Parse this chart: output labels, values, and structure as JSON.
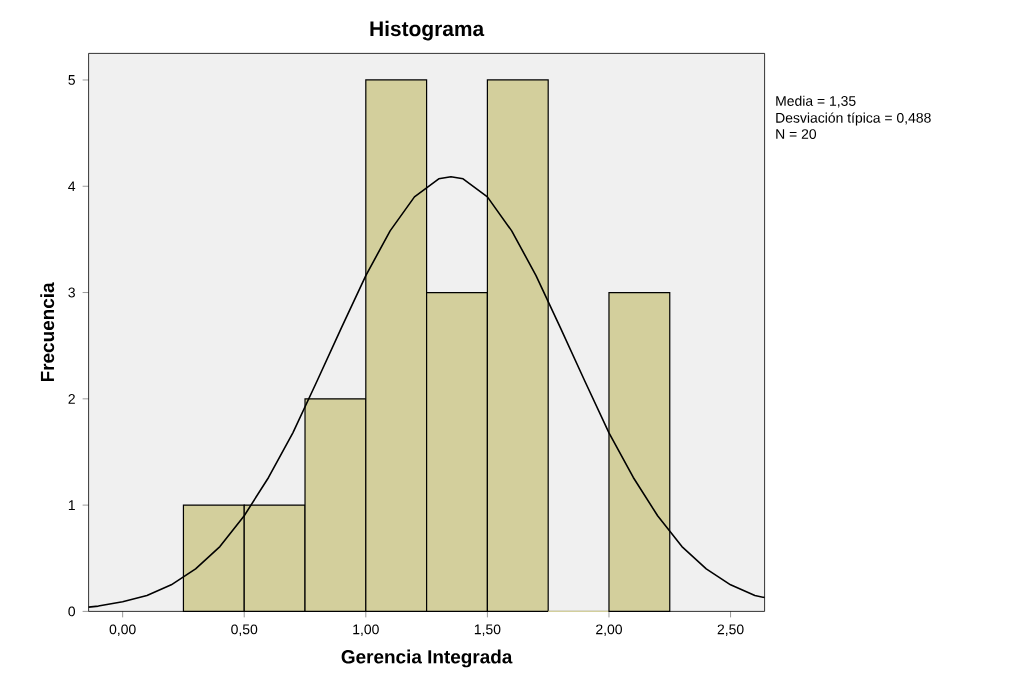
{
  "chart_data": {
    "type": "histogram",
    "title": "Histograma",
    "xlabel": "Gerencia Integrada",
    "ylabel": "Frecuencia",
    "bins": [
      0.25,
      0.5,
      0.75,
      1.0,
      1.25,
      1.5,
      1.75,
      2.0,
      2.25
    ],
    "values": [
      1,
      1,
      2,
      5,
      3,
      5,
      0,
      3
    ],
    "color": "#d3cf9c",
    "series": [
      {
        "type": "line",
        "color": "#000000",
        "x": [
          -0.14,
          -0.1,
          0.0,
          0.1,
          0.2,
          0.3,
          0.4,
          0.5,
          0.6,
          0.7,
          0.8,
          0.9,
          1.0,
          1.1,
          1.2,
          1.3,
          1.35,
          1.4,
          1.5,
          1.6,
          1.7,
          1.8,
          1.9,
          2.0,
          2.1,
          2.2,
          2.3,
          2.4,
          2.5,
          2.6,
          2.64
        ],
        "values": [
          0.04,
          0.05,
          0.09,
          0.15,
          0.25,
          0.4,
          0.61,
          0.9,
          1.26,
          1.68,
          2.17,
          2.67,
          3.16,
          3.58,
          3.9,
          4.07,
          4.09,
          4.07,
          3.9,
          3.58,
          3.16,
          2.67,
          2.17,
          1.68,
          1.26,
          0.9,
          0.61,
          0.4,
          0.25,
          0.15,
          0.13
        ]
      }
    ],
    "xlim": [
      -0.14,
      2.64
    ],
    "ylim": [
      0,
      5.25
    ],
    "xticks": [
      {
        "value": 0,
        "label": "0,00"
      },
      {
        "value": 0.5,
        "label": "0,50"
      },
      {
        "value": 1.0,
        "label": "1,00"
      },
      {
        "value": 1.5,
        "label": "1,50"
      },
      {
        "value": 2.0,
        "label": "2,00"
      },
      {
        "value": 2.5,
        "label": "2,50"
      }
    ],
    "yticks": [
      0,
      1,
      2,
      3,
      4,
      5
    ],
    "grid": false,
    "annotations": [
      "Media = 1,35",
      "Desviación típica = 0,488",
      "N = 20"
    ]
  }
}
